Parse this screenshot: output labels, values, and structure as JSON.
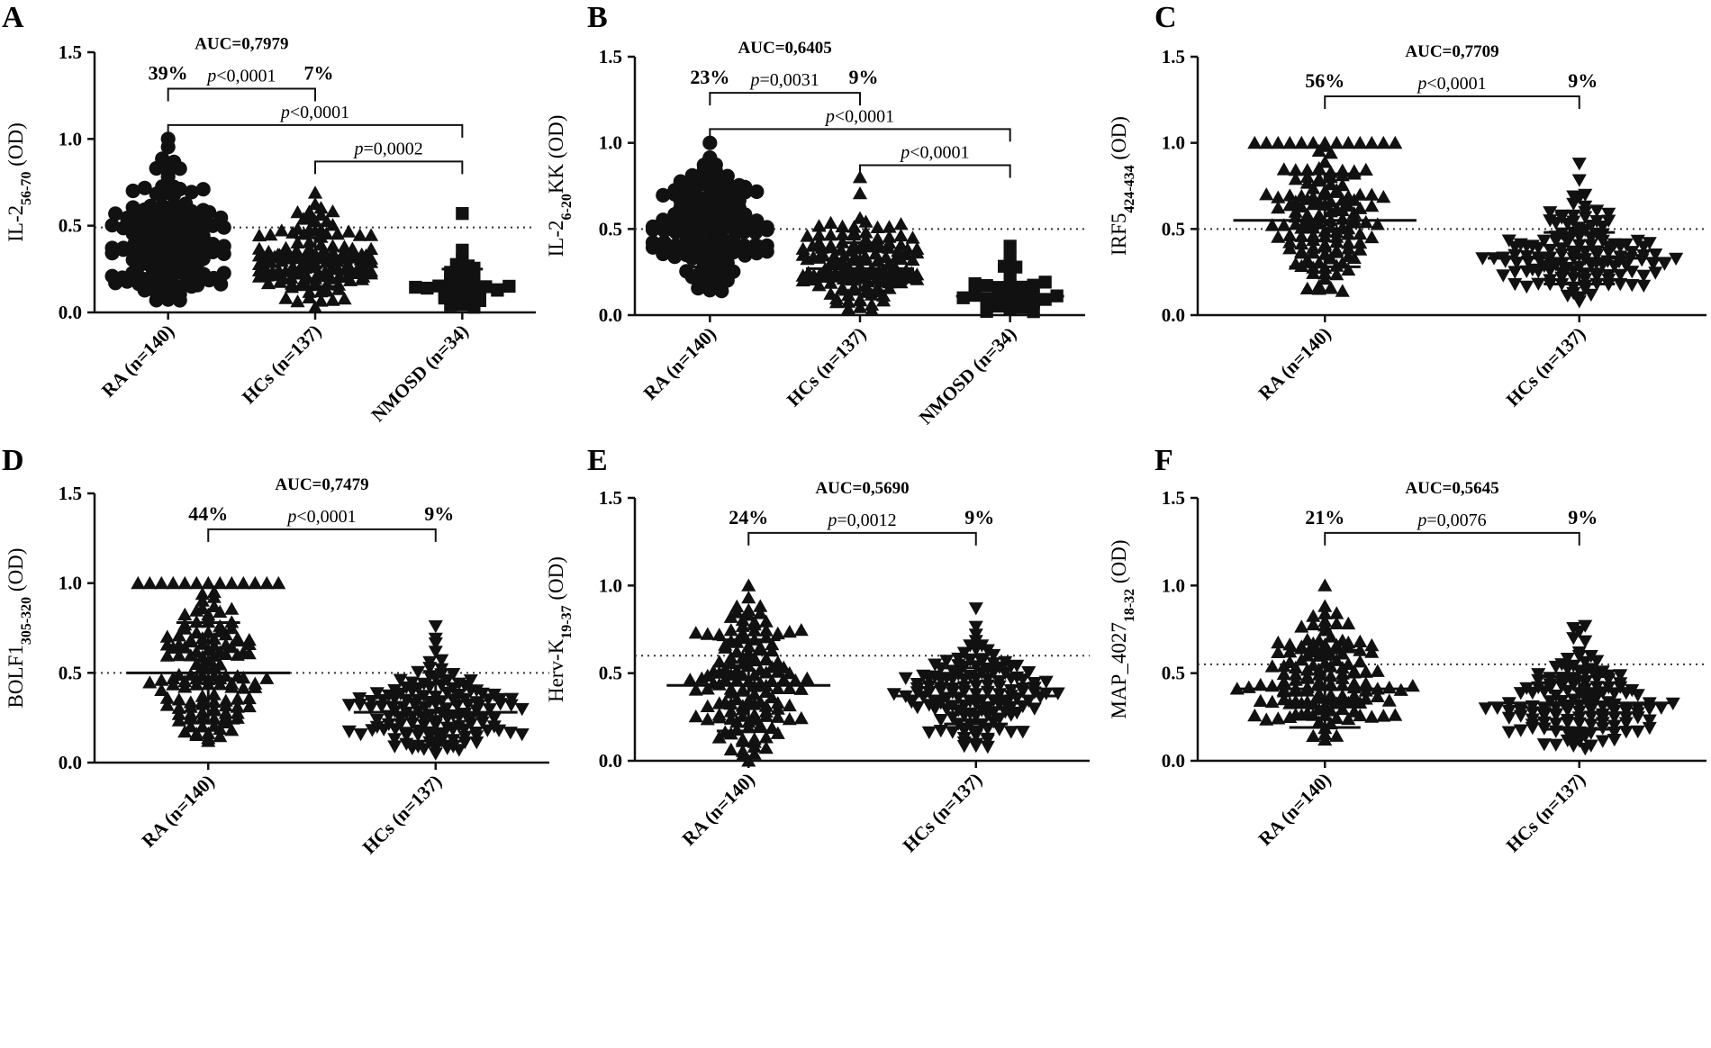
{
  "chart_data": [
    {
      "id": "A",
      "type": "scatter",
      "panel_label": "A",
      "ylabel": "IL-2",
      "ylabel_sub": "56-70",
      "ylabel_tail": " (OD)",
      "ylim": [
        0,
        1.5
      ],
      "yticks": [
        "0.0",
        "0.5",
        "1.0",
        "1.5"
      ],
      "cutoff": 0.49,
      "groups": [
        {
          "label": "RA (n=140)",
          "n": 140,
          "marker": "circle",
          "mean": 0.39,
          "sd": 0.21,
          "min": 0.07,
          "max": 1.0,
          "cap": 0
        },
        {
          "label": "HCs (n=137)",
          "n": 137,
          "marker": "triangle-up",
          "mean": 0.29,
          "sd": 0.14,
          "min": 0.03,
          "max": 0.69,
          "cap": 0
        },
        {
          "label": "NMOSD (n=34)",
          "n": 34,
          "marker": "square",
          "mean": 0.16,
          "sd": 0.09,
          "min": 0.03,
          "max": 0.57,
          "cap": 0
        }
      ],
      "auc": "AUC=0,7979",
      "brackets": [
        {
          "from": 0,
          "to": 1,
          "level": 1.29,
          "p_prefix": "p",
          "p_rest": "<0,0001",
          "left_pct": "39%",
          "right_pct": "7%"
        },
        {
          "from": 0,
          "to": 2,
          "level": 1.08,
          "p_prefix": "p",
          "p_rest": "<0,0001"
        },
        {
          "from": 1,
          "to": 2,
          "level": 0.87,
          "p_prefix": "p",
          "p_rest": "=0,0002"
        }
      ]
    },
    {
      "id": "B",
      "type": "scatter",
      "panel_label": "B",
      "ylabel": "IL-2",
      "ylabel_sub": "6-20",
      "ylabel_tail": "KK (OD)",
      "ylim": [
        0,
        1.5
      ],
      "yticks": [
        "0.0",
        "0.5",
        "1.0",
        "1.5"
      ],
      "cutoff": 0.5,
      "groups": [
        {
          "label": "RA (n=140)",
          "n": 140,
          "marker": "circle",
          "mean": 0.49,
          "sd": 0.21,
          "min": 0.14,
          "max": 1.0,
          "cap": 0
        },
        {
          "label": "HCs (n=137)",
          "n": 137,
          "marker": "triangle-up",
          "mean": 0.27,
          "sd": 0.15,
          "min": 0.03,
          "max": 0.8,
          "cap": 0
        },
        {
          "label": "NMOSD (n=34)",
          "n": 34,
          "marker": "square",
          "mean": 0.11,
          "sd": 0.08,
          "min": 0.02,
          "max": 0.4,
          "cap": 0
        }
      ],
      "auc": "AUC=0,6405",
      "brackets": [
        {
          "from": 0,
          "to": 1,
          "level": 1.29,
          "p_prefix": "p",
          "p_rest": "=0,0031",
          "left_pct": "23%",
          "right_pct": "9%"
        },
        {
          "from": 0,
          "to": 2,
          "level": 1.08,
          "p_prefix": "p",
          "p_rest": "<0,0001"
        },
        {
          "from": 1,
          "to": 2,
          "level": 0.87,
          "p_prefix": "p",
          "p_rest": "<0,0001"
        }
      ]
    },
    {
      "id": "C",
      "type": "scatter",
      "panel_label": "C",
      "ylabel": "IRF5",
      "ylabel_sub": "424-434",
      "ylabel_tail": " (OD)",
      "ylim": [
        0,
        1.5
      ],
      "yticks": [
        "0.0",
        "0.5",
        "1.0",
        "1.5"
      ],
      "cutoff": 0.5,
      "groups": [
        {
          "label": "RA (n=140)",
          "n": 140,
          "marker": "triangle-up",
          "mean": 0.55,
          "sd": 0.27,
          "min": 0.14,
          "max": 1.0,
          "cap": 12
        },
        {
          "label": "HCs (n=137)",
          "n": 137,
          "marker": "triangle-down",
          "mean": 0.33,
          "sd": 0.15,
          "min": 0.08,
          "max": 0.88,
          "cap": 0
        }
      ],
      "auc": "AUC=0,7709",
      "brackets": [
        {
          "from": 0,
          "to": 1,
          "level": 1.27,
          "p_prefix": "p",
          "p_rest": "<0,0001",
          "left_pct": "56%",
          "right_pct": "9%"
        }
      ]
    },
    {
      "id": "D",
      "type": "scatter",
      "panel_label": "D",
      "ylabel": "BOLF1",
      "ylabel_sub": "305-320",
      "ylabel_tail": " (OD)",
      "ylim": [
        0,
        1.5
      ],
      "yticks": [
        "0.0",
        "0.5",
        "1.0",
        "1.5"
      ],
      "cutoff": 0.5,
      "groups": [
        {
          "label": "RA (n=140)",
          "n": 140,
          "marker": "triangle-up",
          "mean": 0.5,
          "sd": 0.28,
          "min": 0.12,
          "max": 1.0,
          "cap": 12
        },
        {
          "label": "HCs (n=137)",
          "n": 137,
          "marker": "triangle-down",
          "mean": 0.28,
          "sd": 0.16,
          "min": 0.05,
          "max": 0.76,
          "cap": 0
        }
      ],
      "auc": "AUC=0,7479",
      "brackets": [
        {
          "from": 0,
          "to": 1,
          "level": 1.3,
          "p_prefix": "p",
          "p_rest": "<0,0001",
          "left_pct": "44%",
          "right_pct": "9%"
        }
      ]
    },
    {
      "id": "E",
      "type": "scatter",
      "panel_label": "E",
      "ylabel": "Herv-K",
      "ylabel_sub": "19-37",
      "ylabel_tail": " (OD)",
      "ylim": [
        0,
        1.5
      ],
      "yticks": [
        "0.0",
        "0.5",
        "1.0",
        "1.5"
      ],
      "cutoff": 0.6,
      "groups": [
        {
          "label": "RA (n=140)",
          "n": 140,
          "marker": "triangle-up",
          "mean": 0.43,
          "sd": 0.26,
          "min": 0.0,
          "max": 1.0,
          "cap": 0
        },
        {
          "label": "HCs (n=137)",
          "n": 137,
          "marker": "triangle-down",
          "mean": 0.37,
          "sd": 0.16,
          "min": 0.08,
          "max": 0.87,
          "cap": 0
        }
      ],
      "auc": "AUC=0,5690",
      "brackets": [
        {
          "from": 0,
          "to": 1,
          "level": 1.3,
          "p_prefix": "p",
          "p_rest": "=0,0012",
          "left_pct": "24%",
          "right_pct": "9%"
        }
      ]
    },
    {
      "id": "F",
      "type": "scatter",
      "panel_label": "F",
      "ylabel": "MAP_4027",
      "ylabel_sub": "18-32",
      "ylabel_tail": " (OD)",
      "ylim": [
        0,
        1.5
      ],
      "yticks": [
        "0.0",
        "0.5",
        "1.0",
        "1.5"
      ],
      "cutoff": 0.55,
      "groups": [
        {
          "label": "RA (n=140)",
          "n": 140,
          "marker": "triangle-up",
          "mean": 0.41,
          "sd": 0.22,
          "min": 0.12,
          "max": 1.0,
          "cap": 0
        },
        {
          "label": "HCs (n=137)",
          "n": 137,
          "marker": "triangle-down",
          "mean": 0.33,
          "sd": 0.15,
          "min": 0.07,
          "max": 0.77,
          "cap": 0
        }
      ],
      "auc": "AUC=0,5645",
      "brackets": [
        {
          "from": 0,
          "to": 1,
          "level": 1.3,
          "p_prefix": "p",
          "p_rest": "=0,0076",
          "left_pct": "21%",
          "right_pct": "9%"
        }
      ]
    }
  ],
  "colors": {
    "ink": "#111111",
    "cutoff": "#333333",
    "background": "#ffffff"
  }
}
